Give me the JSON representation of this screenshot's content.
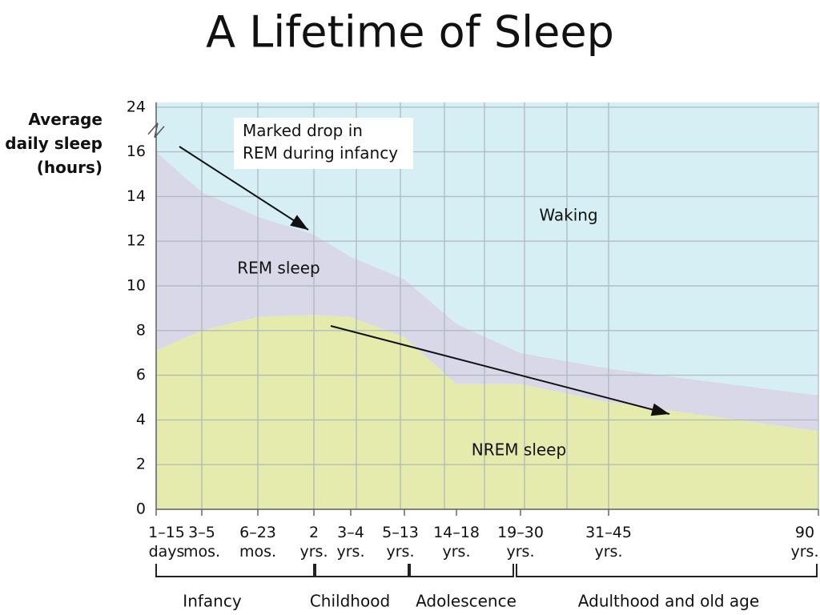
{
  "chart_data": {
    "type": "stacked_area",
    "title": "A Lifetime of Sleep",
    "ylabel": "Average\ndaily sleep\n(hours)",
    "categories": [
      "1–15\ndays",
      "3–5\nmos.",
      "6–23\nmos.",
      "2\nyrs.",
      "3–4\nyrs.",
      "5–13\nyrs.",
      "14–18\nyrs.",
      "19–30\nyrs.",
      "31–45\nyrs.",
      "90\nyrs."
    ],
    "series": [
      {
        "name": "NREM sleep",
        "color": "#e4ebad",
        "values": [
          7.1,
          8.0,
          8.6,
          8.7,
          8.6,
          7.7,
          5.6,
          5.6,
          4.8,
          3.5
        ]
      },
      {
        "name": "REM sleep",
        "color": "#d9d8e8",
        "values": [
          8.9,
          6.2,
          4.5,
          3.6,
          2.7,
          2.6,
          2.7,
          1.4,
          1.5,
          1.6
        ]
      },
      {
        "name": "Waking",
        "color": "#d5eff4",
        "values": [
          8.0,
          9.8,
          10.9,
          11.7,
          12.7,
          13.7,
          15.7,
          17.0,
          17.7,
          18.9
        ]
      }
    ],
    "ylim": [
      0,
      24
    ],
    "yticks": [
      0,
      2,
      4,
      6,
      8,
      10,
      12,
      14,
      16,
      24
    ],
    "y_break": [
      17,
      23
    ],
    "grid": true,
    "annotations": [
      "Marked drop in\nREM during infancy"
    ],
    "x_groups": [
      "Infancy",
      "Childhood",
      "Adolescence",
      "Adulthood and old age"
    ]
  }
}
